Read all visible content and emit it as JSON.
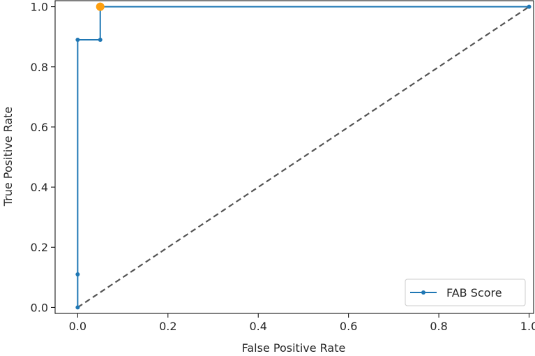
{
  "chart_data": {
    "type": "line",
    "title": "",
    "xlabel": "False Positive Rate",
    "ylabel": "True Positive Rate",
    "xlim": [
      -0.05,
      1.01
    ],
    "ylim": [
      -0.02,
      1.02
    ],
    "xticks": [
      0.0,
      0.2,
      0.4,
      0.6,
      0.8,
      1.0
    ],
    "yticks": [
      0.0,
      0.2,
      0.4,
      0.6,
      0.8,
      1.0
    ],
    "xtick_labels": [
      "0.0",
      "0.2",
      "0.4",
      "0.6",
      "0.8",
      "1.0"
    ],
    "ytick_labels": [
      "0.0",
      "0.2",
      "0.4",
      "0.6",
      "0.8",
      "1.0"
    ],
    "grid": false,
    "legend_position": "bottom-right",
    "series": [
      {
        "name": "FAB Score",
        "color": "#1f77b4",
        "marker": "dot",
        "x": [
          0.0,
          0.0,
          0.0,
          0.05,
          0.05,
          1.0
        ],
        "y": [
          0.0,
          0.11,
          0.89,
          0.89,
          1.0,
          1.0
        ]
      }
    ],
    "reference_line": {
      "style": "dashed",
      "color": "#555555",
      "x": [
        0.0,
        1.0
      ],
      "y": [
        0.0,
        1.0
      ]
    },
    "highlight_point": {
      "color": "#ff9f0e",
      "x": 0.05,
      "y": 1.0
    }
  }
}
